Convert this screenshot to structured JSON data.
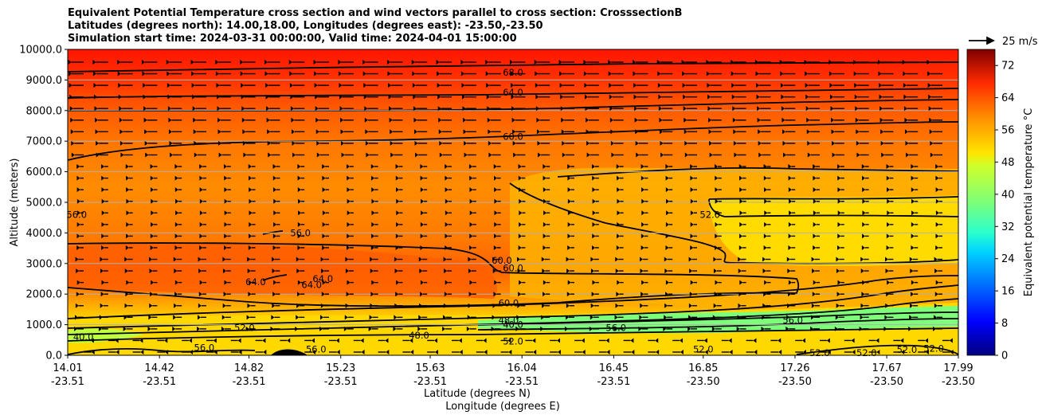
{
  "chart_data": {
    "type": "heatmap",
    "title_lines": [
      "Equivalent Potential Temperature cross section and wind vectors parallel to cross section: CrosssectionB",
      "Latitudes (degrees north): 14.00,18.00, Longitudes (degrees east): -23.50,-23.50",
      "Simulation start time: 2024-03-31 00:00:00, Valid time: 2024-04-01 15:00:00"
    ],
    "ylabel": "Altitude (meters)",
    "xlabel": "Latitude (degrees N)",
    "xlabel2": "Longitude (degrees E)",
    "ylim": [
      0,
      10000
    ],
    "yticks": [
      "0.0",
      "1000.0",
      "2000.0",
      "3000.0",
      "4000.0",
      "5000.0",
      "6000.0",
      "7000.0",
      "8000.0",
      "9000.0",
      "10000.0"
    ],
    "xticks": [
      {
        "lat": "14.01",
        "lon": "-23.51"
      },
      {
        "lat": "14.42",
        "lon": "-23.51"
      },
      {
        "lat": "14.82",
        "lon": "-23.51"
      },
      {
        "lat": "15.23",
        "lon": "-23.51"
      },
      {
        "lat": "15.63",
        "lon": "-23.51"
      },
      {
        "lat": "16.04",
        "lon": "-23.51"
      },
      {
        "lat": "16.45",
        "lon": "-23.51"
      },
      {
        "lat": "16.85",
        "lon": "-23.50"
      },
      {
        "lat": "17.26",
        "lon": "-23.50"
      },
      {
        "lat": "17.67",
        "lon": "-23.50"
      },
      {
        "lat": "17.99",
        "lon": "-23.50"
      }
    ],
    "grid": "horizontal",
    "colorbar": {
      "label": "Equivalent potential temperature $^\\circ$C",
      "range": [
        0,
        76
      ],
      "ticks": [
        "0",
        "8",
        "16",
        "24",
        "32",
        "40",
        "48",
        "56",
        "64",
        "72"
      ],
      "colormap": "jet"
    },
    "quiver_key": {
      "label": "25 m/s",
      "placement": "top-right"
    },
    "contour_labels": [
      {
        "text": "68.0",
        "lat": 16.0,
        "alt": 9250
      },
      {
        "text": "64.0",
        "lat": 16.0,
        "alt": 8600
      },
      {
        "text": "60.0",
        "lat": 16.0,
        "alt": 7150
      },
      {
        "text": "52.0",
        "lat": 16.88,
        "alt": 4600
      },
      {
        "text": "56.0",
        "lat": 14.05,
        "alt": 4600
      },
      {
        "text": "56.0",
        "lat": 15.05,
        "alt": 4000
      },
      {
        "text": "60.0",
        "lat": 15.95,
        "alt": 3100
      },
      {
        "text": "60.0",
        "lat": 16.0,
        "alt": 2850
      },
      {
        "text": "64.0",
        "lat": 15.15,
        "alt": 2500
      },
      {
        "text": "64.0",
        "lat": 14.85,
        "alt": 2400
      },
      {
        "text": "64.0",
        "lat": 15.1,
        "alt": 2300
      },
      {
        "text": "60.0",
        "lat": 15.98,
        "alt": 1700
      },
      {
        "text": "48.0",
        "lat": 15.98,
        "alt": 1150
      },
      {
        "text": "40.0",
        "lat": 16.0,
        "alt": 1000
      },
      {
        "text": "40.0",
        "lat": 14.08,
        "alt": 600
      },
      {
        "text": "48.0",
        "lat": 15.58,
        "alt": 650
      },
      {
        "text": "52.0",
        "lat": 16.0,
        "alt": 450
      },
      {
        "text": "52.0",
        "lat": 14.8,
        "alt": 900
      },
      {
        "text": "56.0",
        "lat": 14.62,
        "alt": 250
      },
      {
        "text": "56.0",
        "lat": 15.12,
        "alt": 200
      },
      {
        "text": "52.0",
        "lat": 16.85,
        "alt": 200
      },
      {
        "text": "56.0",
        "lat": 16.46,
        "alt": 900
      },
      {
        "text": "56.0",
        "lat": 17.25,
        "alt": 1150
      },
      {
        "text": "52.0",
        "lat": 17.37,
        "alt": 80
      },
      {
        "text": "52.0",
        "lat": 17.58,
        "alt": 80
      },
      {
        "text": "52.0",
        "lat": 17.76,
        "alt": 180
      },
      {
        "text": "52.0",
        "lat": 17.88,
        "alt": 220
      }
    ]
  }
}
